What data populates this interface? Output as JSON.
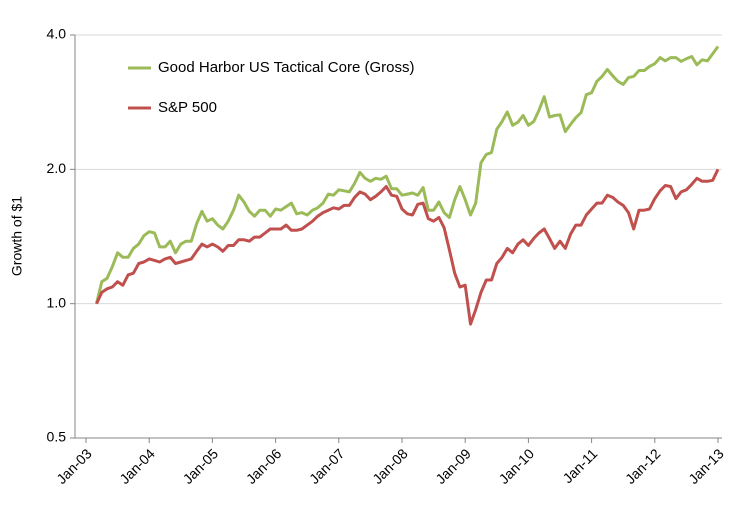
{
  "chart_data": {
    "type": "line",
    "y_label": "Growth of $1",
    "log_scale": true,
    "grid": true,
    "legend": "upper left",
    "categories": [
      "Jan-03",
      null,
      null,
      null,
      null,
      null,
      null,
      null,
      null,
      null,
      null,
      null,
      "Jan-04",
      null,
      null,
      null,
      null,
      null,
      null,
      null,
      null,
      null,
      null,
      null,
      "Jan-05",
      null,
      null,
      null,
      null,
      null,
      null,
      null,
      null,
      null,
      null,
      null,
      "Jan-06",
      null,
      null,
      null,
      null,
      null,
      null,
      null,
      null,
      null,
      null,
      null,
      "Jan-07",
      null,
      null,
      null,
      null,
      null,
      null,
      null,
      null,
      null,
      null,
      null,
      "Jan-08",
      null,
      null,
      null,
      null,
      null,
      null,
      null,
      null,
      null,
      null,
      null,
      "Jan-09",
      null,
      null,
      null,
      null,
      null,
      null,
      null,
      null,
      null,
      null,
      null,
      "Jan-10",
      null,
      null,
      null,
      null,
      null,
      null,
      null,
      null,
      null,
      null,
      null,
      "Jan-11",
      null,
      null,
      null,
      null,
      null,
      null,
      null,
      null,
      null,
      null,
      null,
      "Jan-12",
      null,
      null,
      null,
      null,
      null,
      null,
      null,
      null,
      null,
      null,
      null,
      "Jan-13"
    ],
    "series": [
      {
        "name": "Good Harbor US Tactical Core (Gross)",
        "color": "#9bbb59",
        "values": [
          null,
          null,
          1.0,
          1.12,
          1.14,
          1.21,
          1.3,
          1.27,
          1.27,
          1.33,
          1.36,
          1.42,
          1.45,
          1.44,
          1.34,
          1.34,
          1.38,
          1.3,
          1.36,
          1.38,
          1.38,
          1.51,
          1.61,
          1.53,
          1.55,
          1.5,
          1.47,
          1.53,
          1.62,
          1.75,
          1.69,
          1.61,
          1.57,
          1.62,
          1.62,
          1.57,
          1.63,
          1.62,
          1.65,
          1.68,
          1.59,
          1.6,
          1.58,
          1.62,
          1.64,
          1.68,
          1.76,
          1.75,
          1.8,
          1.79,
          1.78,
          1.86,
          1.97,
          1.91,
          1.88,
          1.91,
          1.9,
          1.93,
          1.81,
          1.81,
          1.75,
          1.76,
          1.77,
          1.75,
          1.82,
          1.62,
          1.62,
          1.69,
          1.6,
          1.56,
          1.71,
          1.83,
          1.71,
          1.58,
          1.68,
          2.07,
          2.16,
          2.18,
          2.46,
          2.56,
          2.69,
          2.51,
          2.55,
          2.64,
          2.51,
          2.56,
          2.71,
          2.91,
          2.62,
          2.64,
          2.65,
          2.43,
          2.52,
          2.61,
          2.68,
          2.94,
          2.97,
          3.15,
          3.23,
          3.35,
          3.24,
          3.15,
          3.1,
          3.21,
          3.23,
          3.33,
          3.33,
          3.4,
          3.45,
          3.56,
          3.5,
          3.56,
          3.56,
          3.49,
          3.54,
          3.58,
          3.43,
          3.52,
          3.5,
          3.63,
          3.77
        ]
      },
      {
        "name": "S&P 500",
        "color": "#c0504d",
        "values": [
          null,
          null,
          1.0,
          1.06,
          1.08,
          1.09,
          1.12,
          1.1,
          1.16,
          1.17,
          1.23,
          1.24,
          1.26,
          1.25,
          1.24,
          1.26,
          1.27,
          1.23,
          1.24,
          1.25,
          1.26,
          1.31,
          1.36,
          1.34,
          1.36,
          1.34,
          1.31,
          1.35,
          1.35,
          1.39,
          1.39,
          1.38,
          1.41,
          1.41,
          1.44,
          1.47,
          1.47,
          1.47,
          1.5,
          1.46,
          1.46,
          1.47,
          1.5,
          1.53,
          1.57,
          1.6,
          1.62,
          1.64,
          1.63,
          1.66,
          1.66,
          1.73,
          1.78,
          1.76,
          1.71,
          1.74,
          1.78,
          1.83,
          1.75,
          1.74,
          1.63,
          1.59,
          1.58,
          1.67,
          1.68,
          1.55,
          1.53,
          1.56,
          1.48,
          1.32,
          1.17,
          1.09,
          1.1,
          0.9,
          0.97,
          1.06,
          1.13,
          1.13,
          1.23,
          1.27,
          1.33,
          1.3,
          1.36,
          1.39,
          1.35,
          1.4,
          1.44,
          1.47,
          1.4,
          1.33,
          1.38,
          1.33,
          1.43,
          1.5,
          1.5,
          1.58,
          1.63,
          1.68,
          1.68,
          1.75,
          1.73,
          1.69,
          1.66,
          1.6,
          1.47,
          1.62,
          1.62,
          1.63,
          1.72,
          1.79,
          1.84,
          1.83,
          1.72,
          1.78,
          1.8,
          1.85,
          1.91,
          1.88,
          1.88,
          1.89,
          2.0
        ]
      }
    ],
    "ylim": [
      0.5,
      4.0
    ],
    "yticks": [
      0.5,
      {
        "value": 1.0,
        "label": "1.0"
      },
      {
        "value": 2.0,
        "label": "2.0"
      },
      {
        "value": 4.0,
        "label": "4.0"
      }
    ]
  }
}
